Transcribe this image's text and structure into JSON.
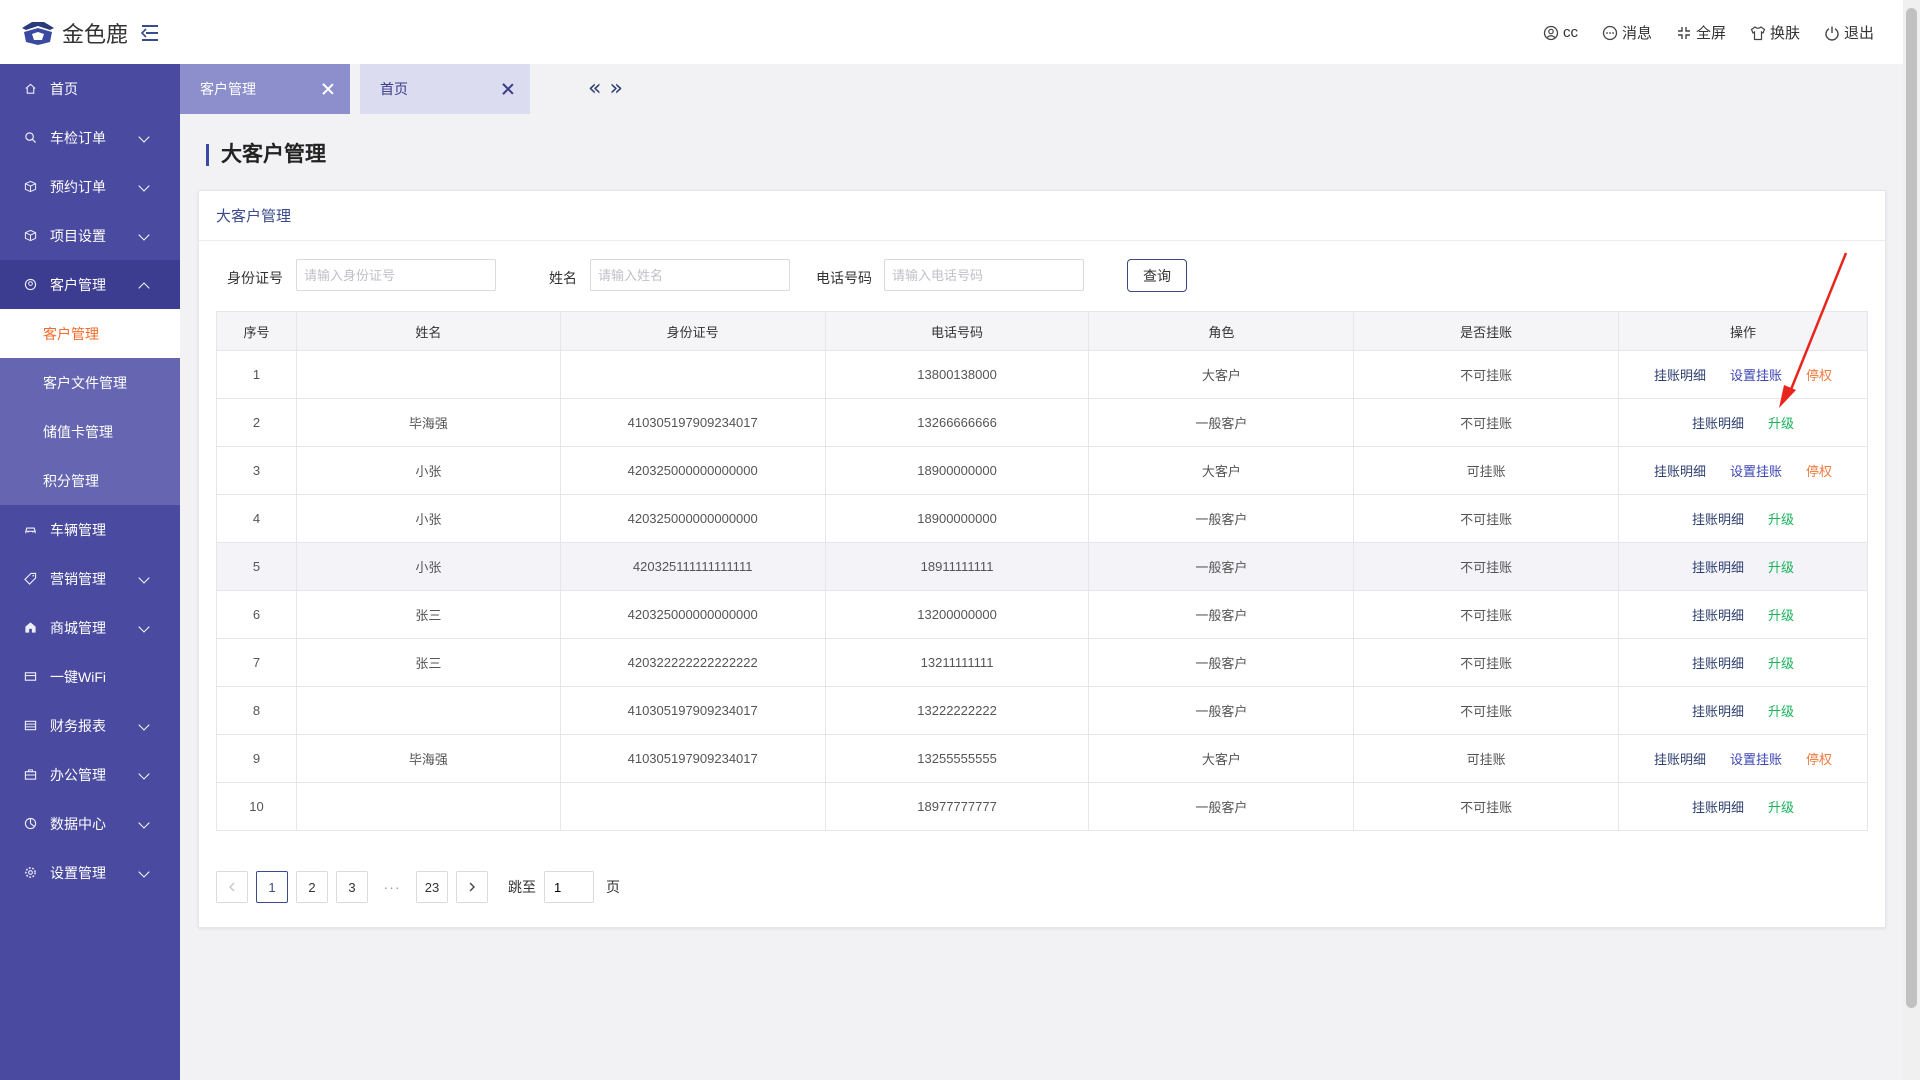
{
  "header": {
    "logo_text": "金色鹿",
    "user": "cc",
    "messages": "消息",
    "fullscreen": "全屏",
    "skin": "换肤",
    "logout": "退出"
  },
  "sidebar": {
    "items": [
      {
        "label": "首页",
        "icon": "home-icon"
      },
      {
        "label": "车检订单",
        "icon": "search-icon"
      },
      {
        "label": "预约订单",
        "icon": "box-icon"
      },
      {
        "label": "项目设置",
        "icon": "box-icon"
      },
      {
        "label": "客户管理",
        "icon": "user-icon"
      },
      {
        "label": "车辆管理",
        "icon": "car-icon"
      },
      {
        "label": "营销管理",
        "icon": "tag-icon"
      },
      {
        "label": "商城管理",
        "icon": "shop-icon"
      },
      {
        "label": "一键WiFi",
        "icon": "wifi-icon"
      },
      {
        "label": "财务报表",
        "icon": "report-icon"
      },
      {
        "label": "办公管理",
        "icon": "briefcase-icon"
      },
      {
        "label": "数据中心",
        "icon": "data-icon"
      },
      {
        "label": "设置管理",
        "icon": "gear-icon"
      }
    ],
    "sub_items": [
      "客户管理",
      "客户文件管理",
      "储值卡管理",
      "积分管理"
    ]
  },
  "tabs": [
    {
      "label": "客户管理"
    },
    {
      "label": "首页"
    }
  ],
  "page_title": "大客户管理",
  "card_title": "大客户管理",
  "filter": {
    "id_label": "身份证号",
    "id_placeholder": "请输入身份证号",
    "name_label": "姓名",
    "name_placeholder": "请输入姓名",
    "phone_label": "电话号码",
    "phone_placeholder": "请输入电话号码",
    "query_button": "查询"
  },
  "table": {
    "headers": [
      "序号",
      "姓名",
      "身份证号",
      "电话号码",
      "角色",
      "是否挂账",
      "操作"
    ],
    "actions": {
      "detail": "挂账明细",
      "set_account": "设置挂账",
      "stop": "停权",
      "upgrade": "升级"
    },
    "rows": [
      {
        "no": "1",
        "name": "",
        "id": "",
        "phone": "13800138000",
        "role": "大客户",
        "credit": "不可挂账",
        "vip": true
      },
      {
        "no": "2",
        "name": "毕海强",
        "id": "410305197909234017",
        "phone": "13266666666",
        "role": "一般客户",
        "credit": "不可挂账",
        "vip": false
      },
      {
        "no": "3",
        "name": "小张",
        "id": "420325000000000000",
        "phone": "18900000000",
        "role": "大客户",
        "credit": "可挂账",
        "vip": true
      },
      {
        "no": "4",
        "name": "小张",
        "id": "420325000000000000",
        "phone": "18900000000",
        "role": "一般客户",
        "credit": "不可挂账",
        "vip": false
      },
      {
        "no": "5",
        "name": "小张",
        "id": "420325111111111111",
        "phone": "18911111111",
        "role": "一般客户",
        "credit": "不可挂账",
        "vip": false
      },
      {
        "no": "6",
        "name": "张三",
        "id": "420325000000000000",
        "phone": "13200000000",
        "role": "一般客户",
        "credit": "不可挂账",
        "vip": false
      },
      {
        "no": "7",
        "name": "张三",
        "id": "420322222222222222",
        "phone": "13211111111",
        "role": "一般客户",
        "credit": "不可挂账",
        "vip": false
      },
      {
        "no": "8",
        "name": "",
        "id": "410305197909234017",
        "phone": "13222222222",
        "role": "一般客户",
        "credit": "不可挂账",
        "vip": false
      },
      {
        "no": "9",
        "name": "毕海强",
        "id": "410305197909234017",
        "phone": "13255555555",
        "role": "大客户",
        "credit": "可挂账",
        "vip": true
      },
      {
        "no": "10",
        "name": "",
        "id": "",
        "phone": "18977777777",
        "role": "一般客户",
        "credit": "不可挂账",
        "vip": false
      }
    ]
  },
  "pagination": {
    "pages": [
      "1",
      "2",
      "3"
    ],
    "ellipsis": "···",
    "last": "23",
    "current": "1",
    "jump_label": "跳至",
    "jump_value": "1",
    "unit": "页"
  },
  "colors": {
    "sidebar": "#4a4aa0",
    "accent": "#f26b2a",
    "upgrade": "#19b25a",
    "annotation": "#e8251c"
  }
}
